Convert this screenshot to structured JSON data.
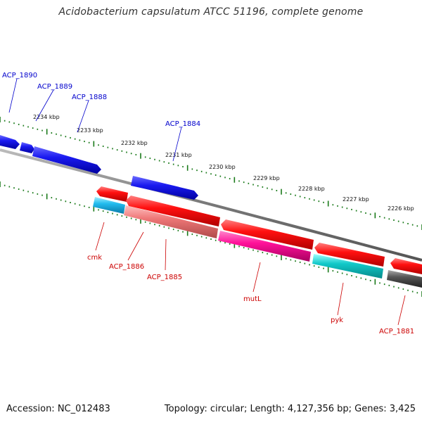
{
  "title": "Acidobacterium capsulatum ATCC 51196, complete genome",
  "footer": {
    "accession": "Accession: NC_012483",
    "summary": "Topology: circular; Length: 4,127,356 bp; Genes: 3,425"
  },
  "colors": {
    "forward_label": "#0000cc",
    "reverse_label": "#cc0000",
    "backbone": "#888888",
    "tick": "#1a7a1a"
  },
  "kbp_markers": [
    "2234 kbp",
    "2233 kbp",
    "2232 kbp",
    "2231 kbp",
    "2230 kbp",
    "2229 kbp",
    "2228 kbp",
    "2227 kbp",
    "2226 kbp"
  ],
  "forward_genes": [
    {
      "label": "ACP_1890",
      "color": "#1010e0"
    },
    {
      "label": "",
      "color": "#1010e0"
    },
    {
      "label": "ACP_1889",
      "color": "#1010e0"
    },
    {
      "label": "ACP_1888",
      "color": "#1010e0"
    },
    {
      "label": "ACP_1884",
      "color": "#1010e0"
    }
  ],
  "reverse_genes": [
    {
      "label": "",
      "color": "#ff1010"
    },
    {
      "label": "",
      "color": "#ff1010"
    },
    {
      "label": "",
      "color": "#ff1010"
    },
    {
      "label": "",
      "color": "#ff1010"
    },
    {
      "label": "",
      "color": "#ff1010"
    }
  ],
  "feature_genes": [
    {
      "label": "cmk",
      "color": "#22bbee"
    },
    {
      "label": "ACP_1886",
      "color": "#ee7777"
    },
    {
      "label": "ACP_1885",
      "color": "#ee7777"
    },
    {
      "label": "mutL",
      "color": "#ff1199"
    },
    {
      "label": "pyk",
      "color": "#11c8c8"
    },
    {
      "label": "ACP_1881",
      "color": "#555555"
    }
  ]
}
